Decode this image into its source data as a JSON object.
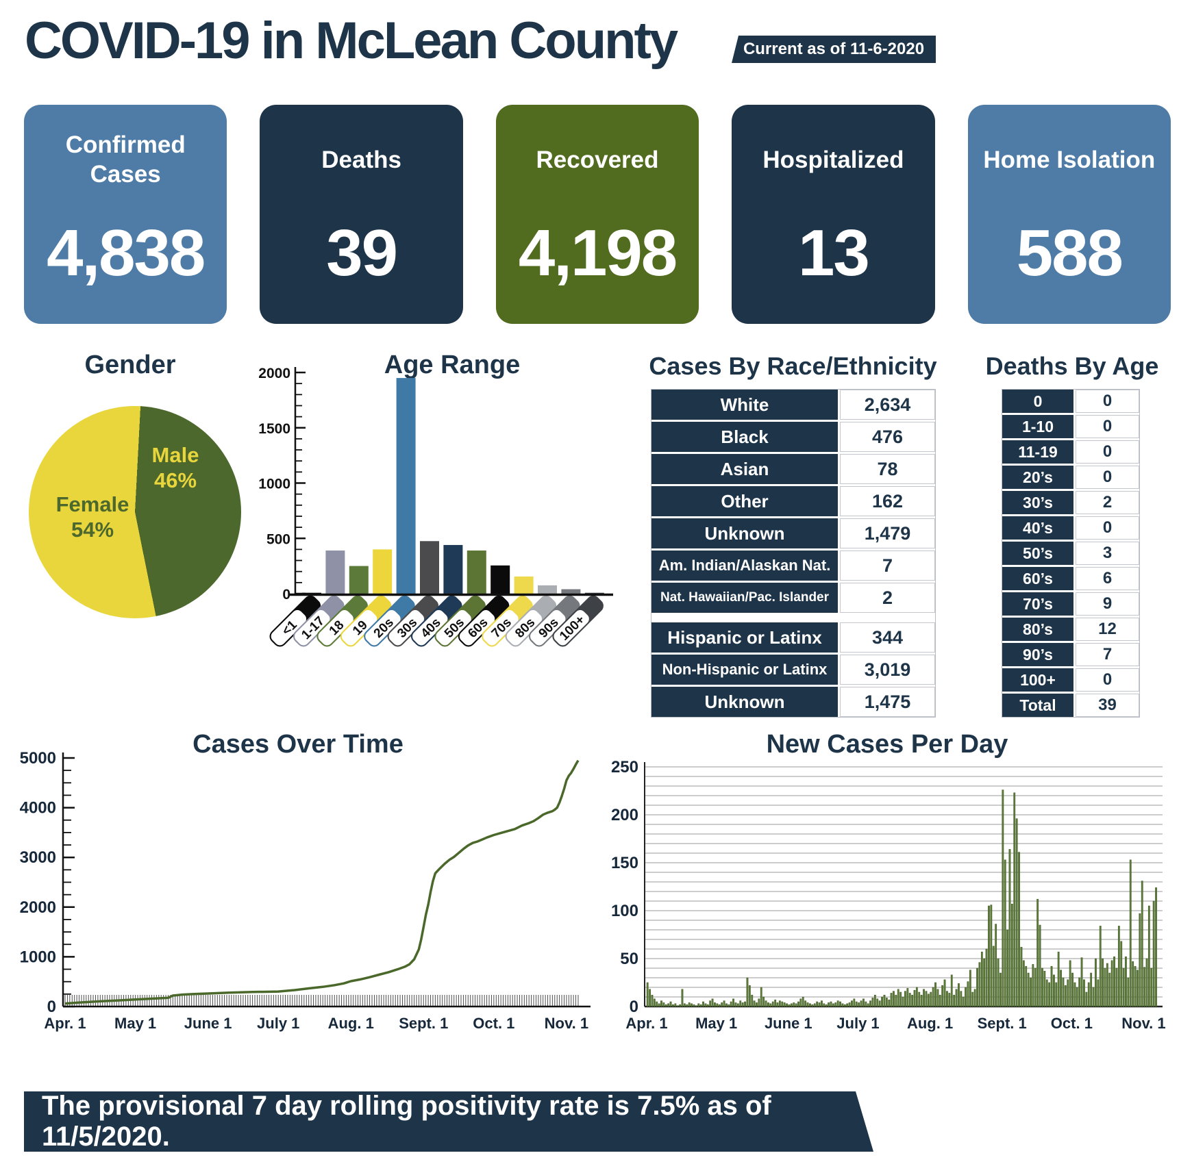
{
  "header": {
    "title": "COVID-19 in McLean County",
    "badge": "Current as of 11-6-2020"
  },
  "stat_cards": [
    {
      "label": "Confirmed Cases",
      "value": "4,838",
      "color": "#4e7ca6"
    },
    {
      "label": "Deaths",
      "value": "39",
      "color": "#1e3448"
    },
    {
      "label": "Recovered",
      "value": "4,198",
      "color": "#516b1f"
    },
    {
      "label": "Hospitalized",
      "value": "13",
      "color": "#1e3448"
    },
    {
      "label": "Home Isolation",
      "value": "588",
      "color": "#4e7ca6"
    }
  ],
  "race_table": {
    "title": "Cases By Race/Ethnicity",
    "race_rows": [
      {
        "label": "White",
        "value": "2,634"
      },
      {
        "label": "Black",
        "value": "476"
      },
      {
        "label": "Asian",
        "value": "78"
      },
      {
        "label": "Other",
        "value": "162"
      },
      {
        "label": "Unknown",
        "value": "1,479"
      },
      {
        "label": "Am. Indian/Alaskan Nat.",
        "value": "7"
      },
      {
        "label": "Nat. Hawaiian/Pac. Islander",
        "value": "2"
      }
    ],
    "ethnicity_rows": [
      {
        "label": "Hispanic or Latinx",
        "value": "344"
      },
      {
        "label": "Non-Hispanic or Latinx",
        "value": "3,019"
      },
      {
        "label": "Unknown",
        "value": "1,475"
      }
    ]
  },
  "deaths_table": {
    "title": "Deaths By Age",
    "rows": [
      {
        "label": "0",
        "value": "0"
      },
      {
        "label": "1-10",
        "value": "0"
      },
      {
        "label": "11-19",
        "value": "0"
      },
      {
        "label": "20’s",
        "value": "0"
      },
      {
        "label": "30’s",
        "value": "2"
      },
      {
        "label": "40’s",
        "value": "0"
      },
      {
        "label": "50’s",
        "value": "3"
      },
      {
        "label": "60’s",
        "value": "6"
      },
      {
        "label": "70’s",
        "value": "9"
      },
      {
        "label": "80’s",
        "value": "12"
      },
      {
        "label": "90’s",
        "value": "7"
      },
      {
        "label": "100+",
        "value": "0"
      },
      {
        "label": "Total",
        "value": "39"
      }
    ]
  },
  "footer": {
    "text": "The provisional 7 day rolling positivity rate is 7.5% as of 11/5/2020."
  },
  "colors": {
    "navy": "#1e3448",
    "navy_text": "#1e3448",
    "steel_blue": "#4e7ca6",
    "olive_green": "#516b1f",
    "line_green": "#4a682a",
    "bar_green": "#5e7d3d",
    "grid_gray": "#9b9b9b"
  },
  "chart_data": [
    {
      "type": "pie",
      "title": "Gender",
      "labels": [
        "Female",
        "Male"
      ],
      "values": [
        54,
        46
      ],
      "display": [
        "54%",
        "46%"
      ],
      "colors": [
        "#e8d63c",
        "#4c682c"
      ],
      "label_text_colors": [
        "#4c682c",
        "#e8d63c"
      ],
      "start_angle_deg": 3,
      "layout": "male slice clockwise from 12 o'clock"
    },
    {
      "type": "bar",
      "title": "Age Range",
      "categories": [
        "<1",
        "1-17",
        "18",
        "19",
        "20s",
        "30s",
        "40s",
        "50s",
        "60s",
        "70s",
        "80s",
        "90s",
        "100+"
      ],
      "values": [
        8,
        390,
        250,
        400,
        1950,
        475,
        440,
        390,
        255,
        155,
        75,
        40,
        8
      ],
      "bar_colors": [
        "#0b0b0b",
        "#8f92a6",
        "#5c7a39",
        "#ecd63c",
        "#3f7aa6",
        "#4b4b4d",
        "#1e3a56",
        "#5c7434",
        "#0b0b0b",
        "#eed84b",
        "#aaadb2",
        "#75787d",
        "#3e4247"
      ],
      "ylim": [
        0,
        2000
      ],
      "yticks": [
        0,
        500,
        1000,
        1500,
        2000
      ],
      "minor_tick_step": 100
    },
    {
      "type": "line",
      "title": "Cases Over Time",
      "color": "#4a682a",
      "ylim": [
        0,
        5000
      ],
      "yticks": [
        0,
        1000,
        2000,
        3000,
        4000,
        5000
      ],
      "minor_tick_step": 250,
      "x_unit": "days since Apr 1, 2020",
      "xticks": [
        {
          "day": 0,
          "label": "Apr. 1"
        },
        {
          "day": 30,
          "label": "May 1"
        },
        {
          "day": 61,
          "label": "June 1"
        },
        {
          "day": 91,
          "label": "July 1"
        },
        {
          "day": 122,
          "label": "Aug. 1"
        },
        {
          "day": 153,
          "label": "Sept. 1"
        },
        {
          "day": 183,
          "label": "Oct. 1"
        },
        {
          "day": 214,
          "label": "Nov. 1"
        }
      ],
      "points": [
        [
          0,
          60
        ],
        [
          8,
          85
        ],
        [
          15,
          105
        ],
        [
          22,
          120
        ],
        [
          30,
          140
        ],
        [
          40,
          165
        ],
        [
          44,
          175
        ],
        [
          46,
          220
        ],
        [
          50,
          240
        ],
        [
          55,
          252
        ],
        [
          61,
          262
        ],
        [
          70,
          280
        ],
        [
          80,
          292
        ],
        [
          91,
          302
        ],
        [
          98,
          330
        ],
        [
          104,
          365
        ],
        [
          110,
          395
        ],
        [
          115,
          430
        ],
        [
          119,
          465
        ],
        [
          122,
          510
        ],
        [
          126,
          545
        ],
        [
          130,
          590
        ],
        [
          134,
          640
        ],
        [
          138,
          690
        ],
        [
          142,
          750
        ],
        [
          145,
          800
        ],
        [
          147,
          850
        ],
        [
          149,
          950
        ],
        [
          151,
          1150
        ],
        [
          152,
          1350
        ],
        [
          153,
          1600
        ],
        [
          154,
          1850
        ],
        [
          155,
          2050
        ],
        [
          156,
          2300
        ],
        [
          157,
          2520
        ],
        [
          158,
          2680
        ],
        [
          160,
          2780
        ],
        [
          162,
          2870
        ],
        [
          164,
          2950
        ],
        [
          166,
          3010
        ],
        [
          168,
          3090
        ],
        [
          170,
          3170
        ],
        [
          172,
          3240
        ],
        [
          174,
          3290
        ],
        [
          176,
          3320
        ],
        [
          178,
          3360
        ],
        [
          180,
          3400
        ],
        [
          183,
          3450
        ],
        [
          186,
          3490
        ],
        [
          189,
          3530
        ],
        [
          192,
          3570
        ],
        [
          195,
          3640
        ],
        [
          198,
          3690
        ],
        [
          200,
          3730
        ],
        [
          202,
          3790
        ],
        [
          204,
          3860
        ],
        [
          206,
          3900
        ],
        [
          208,
          3930
        ],
        [
          209,
          3960
        ],
        [
          210,
          4000
        ],
        [
          211,
          4100
        ],
        [
          212,
          4230
        ],
        [
          213,
          4380
        ],
        [
          214,
          4550
        ],
        [
          215,
          4640
        ],
        [
          216,
          4700
        ],
        [
          217,
          4780
        ],
        [
          218,
          4870
        ],
        [
          219,
          4950
        ]
      ]
    },
    {
      "type": "bar",
      "title": "New Cases Per Day",
      "color": "#5e7d3d",
      "ylim": [
        0,
        250
      ],
      "yticks": [
        0,
        50,
        100,
        150,
        200,
        250
      ],
      "gridline_step": 10,
      "x_unit": "daily, Apr 1 – Nov 6 2020",
      "xticks": [
        {
          "day": 0,
          "label": "Apr. 1"
        },
        {
          "day": 30,
          "label": "May 1"
        },
        {
          "day": 61,
          "label": "June 1"
        },
        {
          "day": 91,
          "label": "July 1"
        },
        {
          "day": 122,
          "label": "Aug. 1"
        },
        {
          "day": 153,
          "label": "Sept. 1"
        },
        {
          "day": 183,
          "label": "Oct. 1"
        },
        {
          "day": 214,
          "label": "Nov. 1"
        }
      ],
      "daily_values": [
        25,
        18,
        12,
        8,
        5,
        3,
        6,
        4,
        2,
        3,
        5,
        2,
        3,
        1,
        2,
        18,
        3,
        2,
        4,
        3,
        2,
        1,
        3,
        2,
        5,
        3,
        2,
        6,
        8,
        4,
        3,
        2,
        4,
        6,
        3,
        2,
        5,
        8,
        4,
        3,
        6,
        4,
        5,
        30,
        22,
        12,
        6,
        4,
        8,
        20,
        10,
        6,
        4,
        3,
        5,
        7,
        4,
        6,
        5,
        4,
        3,
        2,
        3,
        4,
        3,
        5,
        8,
        10,
        6,
        4,
        3,
        2,
        3,
        5,
        4,
        6,
        3,
        2,
        4,
        5,
        3,
        4,
        6,
        5,
        3,
        2,
        3,
        4,
        6,
        8,
        5,
        4,
        6,
        8,
        5,
        3,
        6,
        9,
        12,
        8,
        6,
        10,
        12,
        9,
        7,
        14,
        16,
        12,
        18,
        15,
        10,
        16,
        19,
        14,
        12,
        17,
        20,
        15,
        12,
        18,
        16,
        13,
        15,
        20,
        25,
        18,
        12,
        22,
        28,
        16,
        14,
        33,
        12,
        18,
        24,
        16,
        10,
        20,
        26,
        38,
        15,
        18,
        40,
        46,
        57,
        50,
        60,
        105,
        106,
        63,
        86,
        50,
        35,
        226,
        153,
        80,
        164,
        107,
        223,
        196,
        161,
        62,
        48,
        42,
        35,
        30,
        44,
        40,
        112,
        85,
        40,
        37,
        28,
        25,
        42,
        33,
        25,
        57,
        38,
        30,
        22,
        28,
        48,
        35,
        25,
        20,
        30,
        51,
        28,
        15,
        25,
        35,
        20,
        50,
        28,
        84,
        50,
        40,
        45,
        35,
        48,
        52,
        40,
        84,
        68,
        40,
        52,
        30,
        153,
        47,
        42,
        38,
        97,
        131,
        41,
        50,
        105,
        40,
        110,
        124
      ]
    }
  ]
}
